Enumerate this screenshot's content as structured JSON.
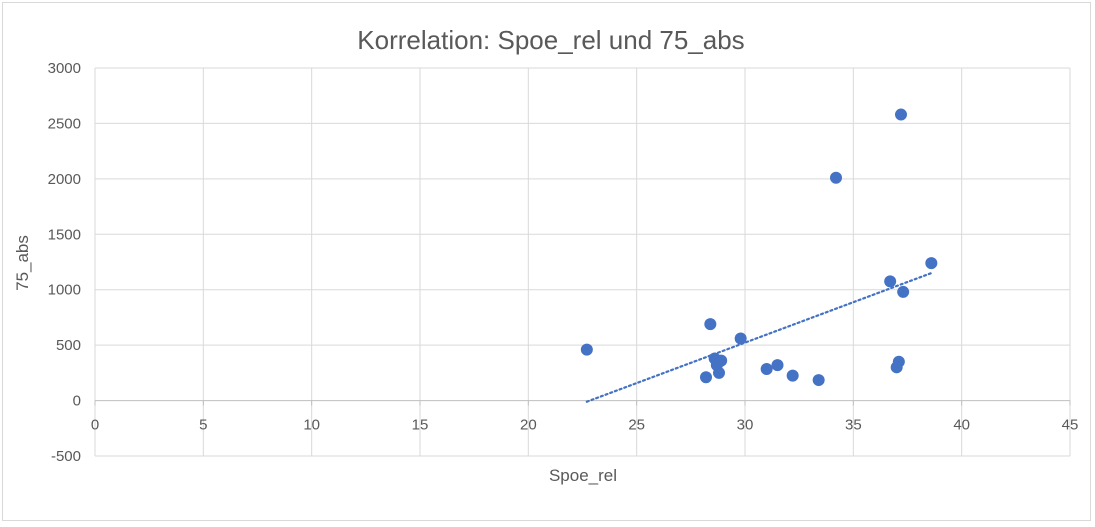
{
  "chart_data": {
    "type": "scatter",
    "title": "Korrelation: Spoe_rel und 75_abs",
    "xlabel": "Spoe_rel",
    "ylabel": "75_abs",
    "xlim": [
      0,
      45
    ],
    "ylim": [
      -500,
      3000
    ],
    "xticks": [
      "0",
      "5",
      "10",
      "15",
      "20",
      "25",
      "30",
      "35",
      "40",
      "45"
    ],
    "yticks": [
      "-500",
      "0",
      "500",
      "1000",
      "1500",
      "2000",
      "2500",
      "3000"
    ],
    "grid": true,
    "legend": "none",
    "series": [
      {
        "color": "#4472c4",
        "points": [
          {
            "x": 22.7,
            "y": 460
          },
          {
            "x": 28.2,
            "y": 210
          },
          {
            "x": 28.4,
            "y": 690
          },
          {
            "x": 28.6,
            "y": 380
          },
          {
            "x": 28.7,
            "y": 320
          },
          {
            "x": 28.8,
            "y": 250
          },
          {
            "x": 28.9,
            "y": 360
          },
          {
            "x": 29.8,
            "y": 560
          },
          {
            "x": 31.0,
            "y": 285
          },
          {
            "x": 31.5,
            "y": 320
          },
          {
            "x": 32.2,
            "y": 225
          },
          {
            "x": 33.4,
            "y": 185
          },
          {
            "x": 34.2,
            "y": 2010
          },
          {
            "x": 36.7,
            "y": 1075
          },
          {
            "x": 37.0,
            "y": 300
          },
          {
            "x": 37.1,
            "y": 350
          },
          {
            "x": 37.2,
            "y": 2580
          },
          {
            "x": 37.3,
            "y": 980
          },
          {
            "x": 38.6,
            "y": 1240
          }
        ]
      }
    ],
    "trendline": {
      "type": "linear",
      "style": "dotted",
      "color": "#4472c4",
      "x_start": 22.7,
      "x_end": 38.6,
      "y_start": -10,
      "y_end": 1150
    }
  }
}
